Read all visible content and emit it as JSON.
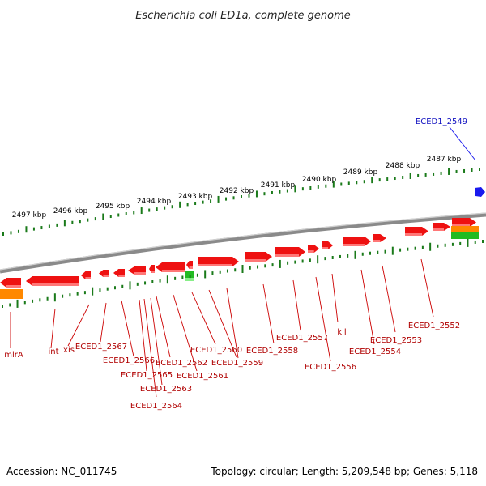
{
  "title": "Escherichia coli ED1a, complete genome",
  "footer": {
    "accession": "Accession: NC_011745",
    "summary": "Topology: circular; Length: 5,209,548 bp; Genes: 5,118"
  },
  "colors": {
    "backbone": "#8a8a8a",
    "tick": "#1a7a1a",
    "gene": "#ee1111",
    "gene_label": "#b00000",
    "blue_feature": "#1a1aee",
    "green_feature": "#22bb22",
    "orange_feature": "#ff8800"
  },
  "kbp_labels": [
    "2487 kbp",
    "2488 kbp",
    "2489 kbp",
    "2490 kbp",
    "2491 kbp",
    "2492 kbp",
    "2493 kbp",
    "2494 kbp",
    "2495 kbp",
    "2496 kbp",
    "2497 kbp"
  ],
  "gene_labels": [
    "mlrA",
    "int",
    "xis",
    "ECED1_2567",
    "ECED1_2566",
    "ECED1_2565",
    "ECED1_2564",
    "ECED1_2563",
    "ECED1_2562",
    "ECED1_2561",
    "ECED1_2560",
    "ECED1_2559",
    "ECED1_2558",
    "ECED1_2557",
    "ECED1_2556",
    "kil",
    "ECED1_2554",
    "ECED1_2553",
    "ECED1_2552"
  ],
  "blue_label": "ECED1_2549"
}
